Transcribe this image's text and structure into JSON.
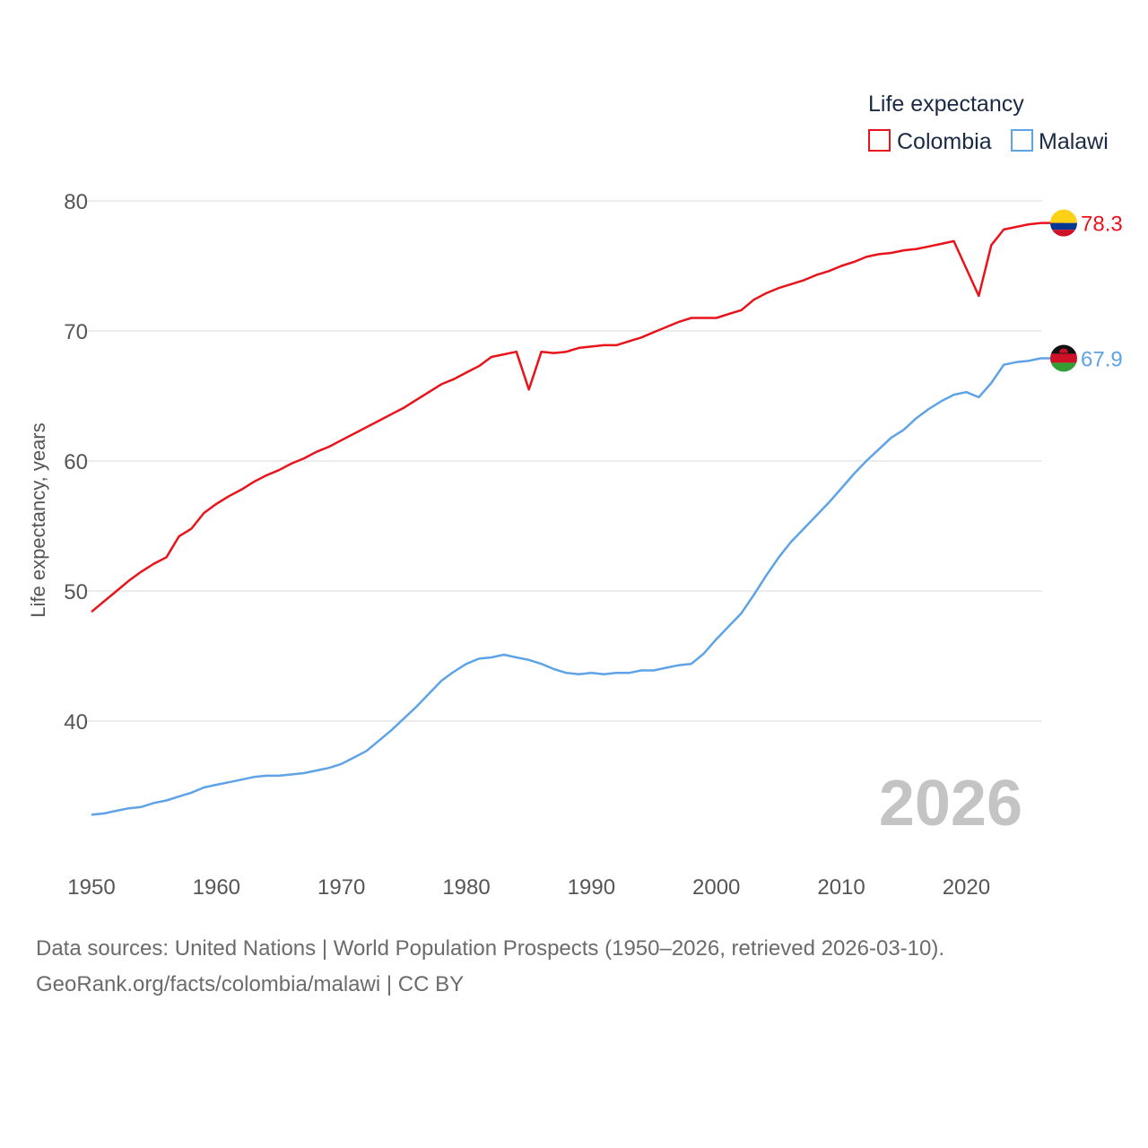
{
  "chart_data": {
    "type": "line",
    "title": "",
    "xlabel": "",
    "ylabel": "Life expectancy, years",
    "xlim": [
      1950,
      2026
    ],
    "ylim": [
      30,
      82
    ],
    "x_ticks": [
      "1950",
      "1960",
      "1970",
      "1980",
      "1990",
      "2000",
      "2010",
      "2020"
    ],
    "y_ticks": [
      "40",
      "50",
      "60",
      "70",
      "80"
    ],
    "legend": {
      "title": "Life expectancy",
      "placement": "top-right",
      "entries": [
        "Colombia",
        "Malawi"
      ]
    },
    "watermark_year": "2026",
    "x": [
      1950,
      1951,
      1952,
      1953,
      1954,
      1955,
      1956,
      1957,
      1958,
      1959,
      1960,
      1961,
      1962,
      1963,
      1964,
      1965,
      1966,
      1967,
      1968,
      1969,
      1970,
      1971,
      1972,
      1973,
      1974,
      1975,
      1976,
      1977,
      1978,
      1979,
      1980,
      1981,
      1982,
      1983,
      1984,
      1985,
      1986,
      1987,
      1988,
      1989,
      1990,
      1991,
      1992,
      1993,
      1994,
      1995,
      1996,
      1997,
      1998,
      1999,
      2000,
      2001,
      2002,
      2003,
      2004,
      2005,
      2006,
      2007,
      2008,
      2009,
      2010,
      2011,
      2012,
      2013,
      2014,
      2015,
      2016,
      2017,
      2018,
      2019,
      2020,
      2021,
      2022,
      2023,
      2024,
      2025,
      2026
    ],
    "series": [
      {
        "name": "Colombia",
        "color": "#e8131b",
        "end_label": "78.3",
        "flag": "colombia-flag",
        "values": [
          48.4,
          49.2,
          50.0,
          50.8,
          51.5,
          52.1,
          52.6,
          54.2,
          54.8,
          56.0,
          56.7,
          57.3,
          57.8,
          58.4,
          58.9,
          59.3,
          59.8,
          60.2,
          60.7,
          61.1,
          61.6,
          62.1,
          62.6,
          63.1,
          63.6,
          64.1,
          64.7,
          65.3,
          65.9,
          66.3,
          66.8,
          67.3,
          68.0,
          68.2,
          68.4,
          65.5,
          68.4,
          68.3,
          68.4,
          68.7,
          68.8,
          68.9,
          68.9,
          69.2,
          69.5,
          69.9,
          70.3,
          70.7,
          71.0,
          71.0,
          71.0,
          71.3,
          71.6,
          72.4,
          72.9,
          73.3,
          73.6,
          73.9,
          74.3,
          74.6,
          75.0,
          75.3,
          75.7,
          75.9,
          76.0,
          76.2,
          76.3,
          76.5,
          76.7,
          76.9,
          74.8,
          72.7,
          76.6,
          77.8,
          78.0,
          78.2,
          78.3
        ]
      },
      {
        "name": "Malawi",
        "color": "#5ea3e6",
        "end_label": "67.9",
        "flag": "malawi-flag",
        "values": [
          32.8,
          32.9,
          33.1,
          33.3,
          33.4,
          33.7,
          33.9,
          34.2,
          34.5,
          34.9,
          35.1,
          35.3,
          35.5,
          35.7,
          35.8,
          35.8,
          35.9,
          36.0,
          36.2,
          36.4,
          36.7,
          37.2,
          37.7,
          38.5,
          39.3,
          40.2,
          41.1,
          42.1,
          43.1,
          43.8,
          44.4,
          44.8,
          44.9,
          45.1,
          44.9,
          44.7,
          44.4,
          44.0,
          43.7,
          43.6,
          43.7,
          43.6,
          43.7,
          43.7,
          43.9,
          43.9,
          44.1,
          44.3,
          44.4,
          45.2,
          46.3,
          47.3,
          48.3,
          49.7,
          51.2,
          52.6,
          53.8,
          54.8,
          55.8,
          56.8,
          57.9,
          59.0,
          60.0,
          60.9,
          61.8,
          62.4,
          63.3,
          64.0,
          64.6,
          65.1,
          65.3,
          64.9,
          66.0,
          67.4,
          67.6,
          67.7,
          67.9
        ]
      }
    ]
  },
  "footer": {
    "line1": "Data sources: United Nations | World Population Prospects (1950–2026, retrieved 2026-03-10).",
    "line2": "GeoRank.org/facts/colombia/malawi | CC BY"
  }
}
